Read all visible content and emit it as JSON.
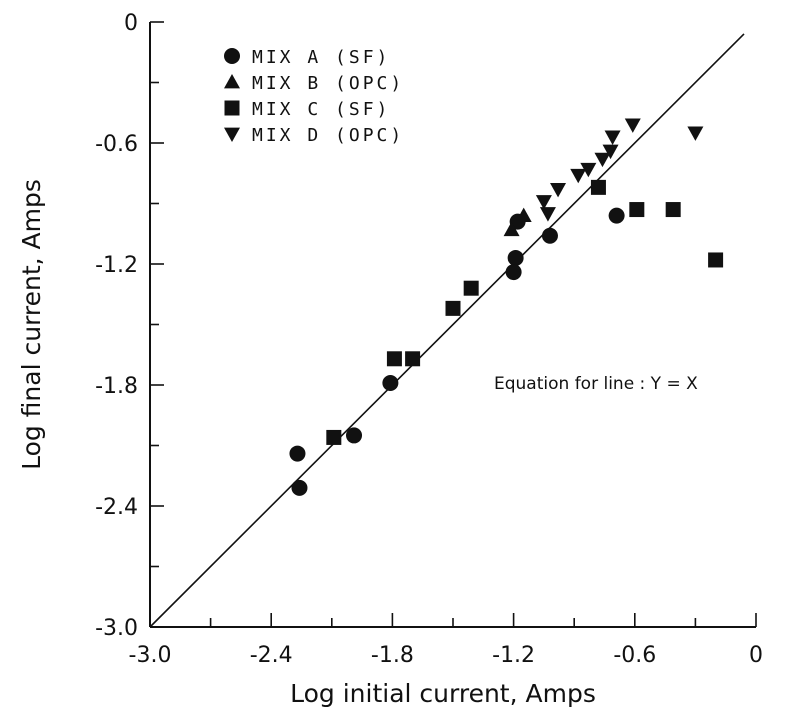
{
  "chart_data": {
    "type": "scatter",
    "xlabel": "Log initial current, Amps",
    "ylabel": "Log final current, Amps",
    "xlim": [
      -3.0,
      0
    ],
    "ylim": [
      -3.0,
      0
    ],
    "x_ticks": [
      -3.0,
      -2.4,
      -1.8,
      -1.2,
      -0.6,
      0
    ],
    "x_tick_labels": [
      "-3.0",
      "-2.4",
      "-1.8",
      "-1.2",
      "-0.6",
      "0"
    ],
    "y_ticks": [
      -3.0,
      -2.4,
      -1.8,
      -1.2,
      -0.6,
      0
    ],
    "y_tick_labels": [
      "-3.0",
      "-2.4",
      "-1.8",
      "-1.2",
      "-0.6",
      "0"
    ],
    "grid": false,
    "legend_position": "top-left",
    "annotation": "Equation for line :  Y = X",
    "reference_line": {
      "slope": 1,
      "intercept": 0
    },
    "series": [
      {
        "name": "MIX  A  (SF)",
        "marker": "circle",
        "points": [
          [
            -2.27,
            -2.14
          ],
          [
            -2.26,
            -2.31
          ],
          [
            -1.99,
            -2.05
          ],
          [
            -1.81,
            -1.79
          ],
          [
            -1.19,
            -1.17
          ],
          [
            -1.2,
            -1.24
          ],
          [
            -1.18,
            -0.99
          ],
          [
            -1.02,
            -1.06
          ],
          [
            -0.69,
            -0.96
          ]
        ]
      },
      {
        "name": "MIX  B  (OPC)",
        "marker": "triangle-up",
        "points": [
          [
            -1.21,
            -1.03
          ],
          [
            -1.15,
            -0.96
          ]
        ]
      },
      {
        "name": "MIX  C  (SF)",
        "marker": "square",
        "points": [
          [
            -2.09,
            -2.06
          ],
          [
            -1.79,
            -1.67
          ],
          [
            -1.7,
            -1.67
          ],
          [
            -1.5,
            -1.42
          ],
          [
            -1.41,
            -1.32
          ],
          [
            -0.78,
            -0.82
          ],
          [
            -0.59,
            -0.93
          ],
          [
            -0.41,
            -0.93
          ],
          [
            -0.2,
            -1.18
          ]
        ]
      },
      {
        "name": "MIX  D  (OPC)",
        "marker": "triangle-down",
        "points": [
          [
            -1.05,
            -0.89
          ],
          [
            -1.03,
            -0.95
          ],
          [
            -0.98,
            -0.83
          ],
          [
            -0.88,
            -0.76
          ],
          [
            -0.83,
            -0.73
          ],
          [
            -0.76,
            -0.68
          ],
          [
            -0.72,
            -0.64
          ],
          [
            -0.71,
            -0.57
          ],
          [
            -0.61,
            -0.51
          ],
          [
            -0.3,
            -0.55
          ]
        ]
      }
    ]
  }
}
